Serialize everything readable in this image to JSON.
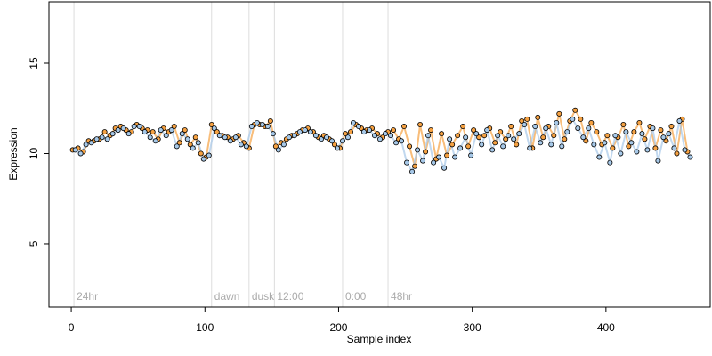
{
  "chart_data": {
    "type": "scatter",
    "x_label": "Sample index",
    "y_label": "Expression",
    "xlim": [
      -16.7,
      478
    ],
    "ylim": [
      1.5,
      18.4
    ],
    "xticks": [
      0,
      100,
      200,
      300,
      400
    ],
    "yticks": [
      5,
      10,
      15
    ],
    "annotations": [
      {
        "x": 2,
        "label": "24hr"
      },
      {
        "x": 105,
        "label": "dawn"
      },
      {
        "x": 133,
        "label": "dusk"
      },
      {
        "x": 152,
        "label": "12:00"
      },
      {
        "x": 203,
        "label": "0:00"
      },
      {
        "x": 237,
        "label": "48hr"
      }
    ],
    "series": [
      {
        "color": "#f5a142",
        "x": [
          1,
          5,
          9,
          13,
          17,
          21,
          25,
          29,
          33,
          37,
          41,
          45,
          49,
          53,
          57,
          61,
          65,
          69,
          73,
          77,
          81,
          85,
          89,
          93,
          97,
          101,
          105,
          109,
          113,
          117,
          121,
          125,
          129,
          133,
          137,
          141,
          145,
          149,
          153,
          157,
          161,
          165,
          169,
          173,
          177,
          181,
          185,
          189,
          193,
          197,
          201,
          205,
          209,
          213,
          217,
          221,
          225,
          229,
          233,
          237,
          241,
          245,
          249,
          253,
          257,
          261,
          265,
          269,
          273,
          277,
          281,
          285,
          289,
          293,
          297,
          301,
          305,
          309,
          313,
          317,
          321,
          325,
          329,
          333,
          337,
          341,
          345,
          349,
          353,
          357,
          361,
          365,
          369,
          373,
          377,
          381,
          385,
          389,
          393,
          397,
          401,
          405,
          409,
          413,
          417,
          421,
          425,
          429,
          433,
          437,
          441,
          445,
          449,
          453,
          457,
          461
        ],
        "values": [
          10.2,
          10.3,
          10.1,
          10.7,
          10.7,
          10.8,
          11.2,
          11.0,
          11.4,
          11.5,
          11.3,
          11.2,
          11.6,
          11.4,
          11.3,
          11.2,
          10.8,
          11.4,
          11.2,
          11.5,
          10.6,
          11.3,
          10.5,
          10.9,
          10.0,
          9.8,
          11.6,
          11.2,
          11.0,
          10.9,
          10.8,
          11.0,
          10.6,
          10.3,
          11.6,
          11.6,
          11.5,
          11.8,
          10.4,
          10.6,
          10.8,
          11.0,
          11.1,
          11.3,
          11.4,
          11.2,
          10.9,
          11.0,
          10.8,
          10.5,
          10.3,
          11.1,
          11.2,
          11.6,
          11.4,
          11.3,
          11.4,
          11.1,
          10.9,
          11.2,
          11.3,
          10.8,
          11.5,
          10.4,
          9.3,
          11.6,
          10.1,
          11.3,
          9.7,
          11.1,
          9.9,
          10.5,
          11.0,
          11.5,
          10.4,
          11.3,
          10.9,
          11.0,
          11.4,
          10.6,
          11.2,
          10.8,
          11.5,
          10.5,
          11.8,
          11.9,
          10.3,
          12.0,
          10.9,
          11.5,
          11.0,
          12.2,
          10.8,
          11.8,
          12.4,
          11.9,
          10.7,
          11.7,
          11.2,
          10.5,
          11.0,
          10.3,
          10.9,
          11.6,
          10.4,
          11.2,
          11.7,
          10.8,
          11.5,
          10.3,
          11.3,
          10.7,
          11.5,
          10.0,
          11.9,
          10.1
        ]
      },
      {
        "color": "#a6c8e8",
        "x": [
          3,
          7,
          11,
          15,
          19,
          23,
          27,
          31,
          35,
          39,
          43,
          47,
          51,
          55,
          59,
          63,
          67,
          71,
          75,
          79,
          83,
          87,
          91,
          95,
          99,
          103,
          107,
          111,
          115,
          119,
          123,
          127,
          131,
          135,
          139,
          143,
          147,
          151,
          155,
          159,
          163,
          167,
          171,
          175,
          179,
          183,
          187,
          191,
          195,
          199,
          203,
          207,
          211,
          215,
          219,
          223,
          227,
          231,
          235,
          239,
          243,
          247,
          251,
          255,
          259,
          263,
          267,
          271,
          275,
          279,
          283,
          287,
          291,
          295,
          299,
          303,
          307,
          311,
          315,
          319,
          323,
          327,
          331,
          335,
          339,
          343,
          347,
          351,
          355,
          359,
          363,
          367,
          371,
          375,
          379,
          383,
          387,
          391,
          395,
          399,
          403,
          407,
          411,
          415,
          419,
          423,
          427,
          431,
          435,
          439,
          443,
          447,
          451,
          455,
          459,
          463
        ],
        "values": [
          10.2,
          10.0,
          10.5,
          10.6,
          10.8,
          10.9,
          10.8,
          11.1,
          11.3,
          11.4,
          11.1,
          11.5,
          11.5,
          11.2,
          10.9,
          10.7,
          11.3,
          11.0,
          11.3,
          10.4,
          11.1,
          10.8,
          10.3,
          10.6,
          9.7,
          9.9,
          11.4,
          11.0,
          10.9,
          10.7,
          10.9,
          10.5,
          10.4,
          11.5,
          11.7,
          11.6,
          11.5,
          11.1,
          10.2,
          10.5,
          10.9,
          11.0,
          11.2,
          11.3,
          11.2,
          11.0,
          10.8,
          10.9,
          10.7,
          10.3,
          10.7,
          10.9,
          11.7,
          11.5,
          11.2,
          11.3,
          11.0,
          10.8,
          11.1,
          11.0,
          10.6,
          10.7,
          9.5,
          9.0,
          10.2,
          9.6,
          11.0,
          9.5,
          9.8,
          9.2,
          10.8,
          9.8,
          10.3,
          10.9,
          9.9,
          11.1,
          10.5,
          11.3,
          10.2,
          11.0,
          10.4,
          11.0,
          10.8,
          11.1,
          11.6,
          10.3,
          11.5,
          10.6,
          11.4,
          10.5,
          11.7,
          10.4,
          11.2,
          11.9,
          11.4,
          10.9,
          11.4,
          10.5,
          9.8,
          10.6,
          9.5,
          11.0,
          10.0,
          11.2,
          10.6,
          10.1,
          11.1,
          10.2,
          11.4,
          9.6,
          10.9,
          11.1,
          10.3,
          11.8,
          10.2,
          9.8
        ]
      }
    ]
  }
}
